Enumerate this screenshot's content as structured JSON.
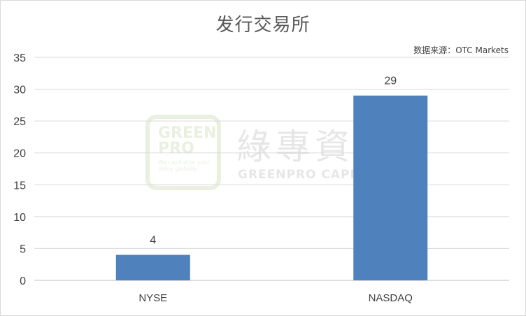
{
  "source_text": "数据来源：OTC Markets",
  "watermark": {
    "logo_text": "GREEN\nPRO",
    "logo_sub": "We capitalize your\nvalue globally",
    "cn": "綠專資本",
    "en": "GREENPRO CAPITAL"
  },
  "chart_data": {
    "type": "bar",
    "title": "发行交易所",
    "categories": [
      "NYSE",
      "NASDAQ"
    ],
    "values": [
      4,
      29
    ],
    "ylim": [
      0,
      35
    ],
    "yticks": [
      0,
      5,
      10,
      15,
      20,
      25,
      30,
      35
    ],
    "grid": true,
    "bar_color": "#4f81bd",
    "grid_color": "#d9d9d9",
    "text_color": "#595959"
  }
}
